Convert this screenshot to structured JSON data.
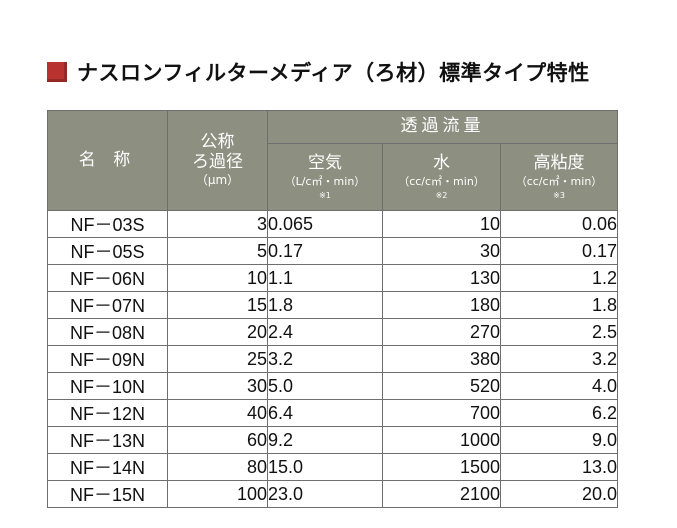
{
  "title": {
    "icon": "red-square-bullet",
    "accent_color": "#b8322f",
    "text": "ナスロンフィルターメディア（ろ材）標準タイプ特性"
  },
  "table": {
    "header_color": "#8d8f80",
    "header": {
      "name": "名 称",
      "pore_line1": "公称",
      "pore_line2": "ろ過径",
      "pore_unit": "（μm）",
      "flow_group": "透過流量",
      "air": "空気",
      "air_unit": "（L/c㎡・min）",
      "air_note": "※1",
      "water": "水",
      "water_unit": "（cc/c㎡・min）",
      "water_note": "※2",
      "viscous": "高粘度",
      "viscous_unit": "（cc/c㎡・min）",
      "viscous_note": "※3"
    },
    "rows": [
      {
        "name": "NF－03S",
        "pore": "3",
        "air": "0.065",
        "water": "10",
        "viscous": "0.06"
      },
      {
        "name": "NF－05S",
        "pore": "5",
        "air": "0.17",
        "water": "30",
        "viscous": "0.17"
      },
      {
        "name": "NF－06N",
        "pore": "10",
        "air": "1.1",
        "water": "130",
        "viscous": "1.2"
      },
      {
        "name": "NF－07N",
        "pore": "15",
        "air": "1.8",
        "water": "180",
        "viscous": "1.8"
      },
      {
        "name": "NF－08N",
        "pore": "20",
        "air": "2.4",
        "water": "270",
        "viscous": "2.5"
      },
      {
        "name": "NF－09N",
        "pore": "25",
        "air": "3.2",
        "water": "380",
        "viscous": "3.2"
      },
      {
        "name": "NF－10N",
        "pore": "30",
        "air": "5.0",
        "water": "520",
        "viscous": "4.0"
      },
      {
        "name": "NF－12N",
        "pore": "40",
        "air": "6.4",
        "water": "700",
        "viscous": "6.2"
      },
      {
        "name": "NF－13N",
        "pore": "60",
        "air": "9.2",
        "water": "1000",
        "viscous": "9.0"
      },
      {
        "name": "NF－14N",
        "pore": "80",
        "air": "15.0",
        "water": "1500",
        "viscous": "13.0"
      },
      {
        "name": "NF－15N",
        "pore": "100",
        "air": "23.0",
        "water": "2100",
        "viscous": "20.0"
      }
    ]
  }
}
